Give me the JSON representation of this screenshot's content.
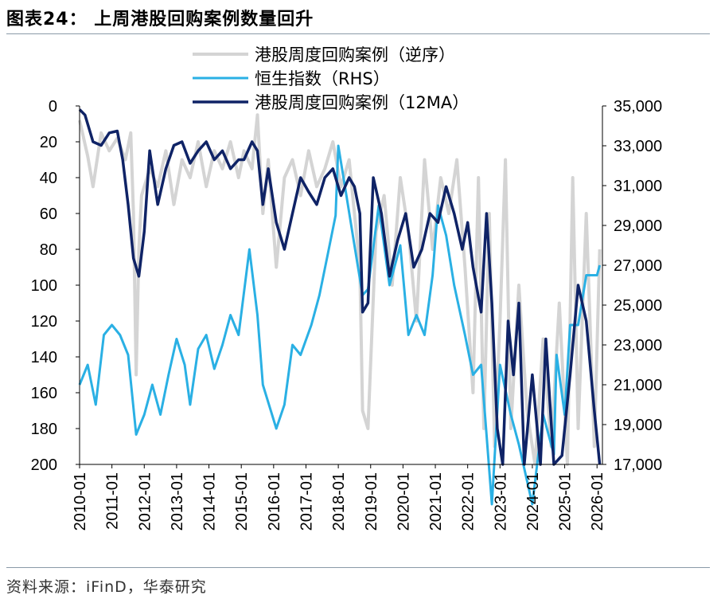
{
  "header": {
    "title": "图表24：  上周港股回购案例数量回升"
  },
  "footer": {
    "source": "资料来源：iFinD，华泰研究"
  },
  "chart_data": {
    "type": "line",
    "x_tick_labels": [
      "2010-01",
      "2011-01",
      "2012-01",
      "2013-01",
      "2014-01",
      "2015-01",
      "2016-01",
      "2017-01",
      "2018-01",
      "2019-01",
      "2020-01",
      "2021-01",
      "2022-01",
      "2023-01",
      "2024-01",
      "2025-01",
      "2026-01"
    ],
    "x_range": [
      "2010-01",
      "2026-03"
    ],
    "left_axis": {
      "inverted": true,
      "ylim": [
        0,
        200
      ],
      "tick_labels": [
        "0",
        "20",
        "40",
        "60",
        "80",
        "100",
        "120",
        "140",
        "160",
        "180",
        "200"
      ]
    },
    "right_axis": {
      "ylim": [
        17000,
        35000
      ],
      "tick_labels": [
        "35,000",
        "33,000",
        "31,000",
        "29,000",
        "27,000",
        "25,000",
        "23,000",
        "21,000",
        "19,000",
        "17,000"
      ]
    },
    "legend_position": "top",
    "series": [
      {
        "name": "港股周度回购案例（逆序）",
        "axis": "left",
        "color": "#d4d4d4",
        "points": [
          [
            "2010-01",
            8
          ],
          [
            "2010-04",
            28
          ],
          [
            "2010-06",
            45
          ],
          [
            "2010-09",
            15
          ],
          [
            "2010-12",
            25
          ],
          [
            "2011-03",
            18
          ],
          [
            "2011-06",
            30
          ],
          [
            "2011-08",
            15
          ],
          [
            "2011-09",
            60
          ],
          [
            "2011-10",
            150
          ],
          [
            "2011-11",
            80
          ],
          [
            "2011-12",
            50
          ],
          [
            "2012-03",
            35
          ],
          [
            "2012-06",
            45
          ],
          [
            "2012-09",
            25
          ],
          [
            "2012-12",
            55
          ],
          [
            "2013-03",
            30
          ],
          [
            "2013-06",
            40
          ],
          [
            "2013-09",
            20
          ],
          [
            "2013-12",
            45
          ],
          [
            "2014-03",
            25
          ],
          [
            "2014-06",
            35
          ],
          [
            "2014-09",
            20
          ],
          [
            "2014-12",
            40
          ],
          [
            "2015-02",
            25
          ],
          [
            "2015-05",
            35
          ],
          [
            "2015-07",
            5
          ],
          [
            "2015-09",
            60
          ],
          [
            "2015-11",
            30
          ],
          [
            "2016-02",
            90
          ],
          [
            "2016-05",
            40
          ],
          [
            "2016-08",
            30
          ],
          [
            "2016-11",
            50
          ],
          [
            "2017-02",
            25
          ],
          [
            "2017-05",
            45
          ],
          [
            "2017-08",
            35
          ],
          [
            "2017-11",
            20
          ],
          [
            "2018-02",
            45
          ],
          [
            "2018-05",
            30
          ],
          [
            "2018-07",
            60
          ],
          [
            "2018-09",
            90
          ],
          [
            "2018-10",
            170
          ],
          [
            "2018-12",
            180
          ],
          [
            "2019-03",
            70
          ],
          [
            "2019-06",
            50
          ],
          [
            "2019-09",
            100
          ],
          [
            "2019-12",
            40
          ],
          [
            "2020-03",
            70
          ],
          [
            "2020-06",
            120
          ],
          [
            "2020-09",
            30
          ],
          [
            "2020-12",
            80
          ],
          [
            "2021-03",
            40
          ],
          [
            "2021-06",
            60
          ],
          [
            "2021-09",
            30
          ],
          [
            "2021-12",
            90
          ],
          [
            "2022-03",
            160
          ],
          [
            "2022-05",
            40
          ],
          [
            "2022-07",
            180
          ],
          [
            "2022-09",
            60
          ],
          [
            "2022-11",
            190
          ],
          [
            "2023-01",
            120
          ],
          [
            "2023-03",
            30
          ],
          [
            "2023-05",
            180
          ],
          [
            "2023-08",
            100
          ],
          [
            "2023-11",
            170
          ],
          [
            "2024-02",
            200
          ],
          [
            "2024-05",
            130
          ],
          [
            "2024-08",
            190
          ],
          [
            "2024-11",
            110
          ],
          [
            "2025-02",
            200
          ],
          [
            "2025-04",
            40
          ],
          [
            "2025-06",
            180
          ],
          [
            "2025-09",
            60
          ],
          [
            "2025-12",
            190
          ],
          [
            "2026-02",
            80
          ]
        ]
      },
      {
        "name": "恒生指数（RHS）",
        "axis": "right",
        "color": "#2ab0e4",
        "points": [
          [
            "2010-01",
            21000
          ],
          [
            "2010-04",
            22000
          ],
          [
            "2010-07",
            20000
          ],
          [
            "2010-10",
            23500
          ],
          [
            "2011-01",
            24000
          ],
          [
            "2011-04",
            23500
          ],
          [
            "2011-07",
            22500
          ],
          [
            "2011-10",
            18500
          ],
          [
            "2012-01",
            19500
          ],
          [
            "2012-04",
            21000
          ],
          [
            "2012-07",
            19500
          ],
          [
            "2012-10",
            21500
          ],
          [
            "2013-01",
            23300
          ],
          [
            "2013-04",
            22000
          ],
          [
            "2013-06",
            20000
          ],
          [
            "2013-09",
            22800
          ],
          [
            "2013-12",
            23500
          ],
          [
            "2014-03",
            21800
          ],
          [
            "2014-06",
            23000
          ],
          [
            "2014-09",
            24500
          ],
          [
            "2014-12",
            23500
          ],
          [
            "2015-04",
            27800
          ],
          [
            "2015-07",
            24500
          ],
          [
            "2015-09",
            21000
          ],
          [
            "2016-02",
            18800
          ],
          [
            "2016-05",
            20000
          ],
          [
            "2016-08",
            23000
          ],
          [
            "2016-11",
            22500
          ],
          [
            "2017-03",
            24000
          ],
          [
            "2017-06",
            25500
          ],
          [
            "2017-09",
            27500
          ],
          [
            "2017-12",
            29500
          ],
          [
            "2018-01",
            33000
          ],
          [
            "2018-04",
            30500
          ],
          [
            "2018-07",
            28000
          ],
          [
            "2018-10",
            25500
          ],
          [
            "2018-12",
            25800
          ],
          [
            "2019-04",
            30000
          ],
          [
            "2019-08",
            26000
          ],
          [
            "2019-12",
            28000
          ],
          [
            "2020-03",
            23500
          ],
          [
            "2020-06",
            24500
          ],
          [
            "2020-09",
            23500
          ],
          [
            "2020-12",
            26500
          ],
          [
            "2021-02",
            30000
          ],
          [
            "2021-05",
            28500
          ],
          [
            "2021-08",
            26000
          ],
          [
            "2021-12",
            23500
          ],
          [
            "2022-03",
            21500
          ],
          [
            "2022-06",
            22000
          ],
          [
            "2022-10",
            15000
          ],
          [
            "2023-01",
            22000
          ],
          [
            "2023-05",
            19500
          ],
          [
            "2023-08",
            18000
          ],
          [
            "2024-01",
            15000
          ],
          [
            "2024-05",
            19500
          ],
          [
            "2024-09",
            17500
          ],
          [
            "2024-10",
            22500
          ],
          [
            "2025-01",
            19500
          ],
          [
            "2025-03",
            24000
          ],
          [
            "2025-06",
            24000
          ],
          [
            "2025-09",
            26500
          ],
          [
            "2026-01",
            26500
          ],
          [
            "2026-02",
            27000
          ]
        ]
      },
      {
        "name": "港股周度回购案例（12MA）",
        "axis": "left",
        "color": "#0f2366",
        "points": [
          [
            "2010-01",
            2
          ],
          [
            "2010-03",
            5
          ],
          [
            "2010-06",
            20
          ],
          [
            "2010-09",
            22
          ],
          [
            "2010-12",
            15
          ],
          [
            "2011-03",
            14
          ],
          [
            "2011-05",
            30
          ],
          [
            "2011-07",
            55
          ],
          [
            "2011-09",
            85
          ],
          [
            "2011-11",
            95
          ],
          [
            "2012-01",
            70
          ],
          [
            "2012-03",
            25
          ],
          [
            "2012-06",
            55
          ],
          [
            "2012-09",
            35
          ],
          [
            "2012-12",
            22
          ],
          [
            "2013-03",
            20
          ],
          [
            "2013-06",
            32
          ],
          [
            "2013-09",
            25
          ],
          [
            "2013-12",
            20
          ],
          [
            "2014-03",
            30
          ],
          [
            "2014-06",
            25
          ],
          [
            "2014-09",
            35
          ],
          [
            "2014-12",
            30
          ],
          [
            "2015-02",
            30
          ],
          [
            "2015-05",
            20
          ],
          [
            "2015-07",
            25
          ],
          [
            "2015-09",
            55
          ],
          [
            "2015-11",
            35
          ],
          [
            "2016-02",
            65
          ],
          [
            "2016-05",
            80
          ],
          [
            "2016-08",
            60
          ],
          [
            "2016-11",
            40
          ],
          [
            "2017-02",
            48
          ],
          [
            "2017-05",
            55
          ],
          [
            "2017-08",
            40
          ],
          [
            "2017-11",
            35
          ],
          [
            "2018-02",
            50
          ],
          [
            "2018-05",
            40
          ],
          [
            "2018-07",
            45
          ],
          [
            "2018-09",
            60
          ],
          [
            "2018-10",
            115
          ],
          [
            "2018-12",
            110
          ],
          [
            "2019-02",
            40
          ],
          [
            "2019-05",
            60
          ],
          [
            "2019-08",
            95
          ],
          [
            "2019-11",
            75
          ],
          [
            "2020-02",
            60
          ],
          [
            "2020-05",
            90
          ],
          [
            "2020-08",
            80
          ],
          [
            "2020-11",
            60
          ],
          [
            "2021-02",
            65
          ],
          [
            "2021-05",
            45
          ],
          [
            "2021-08",
            60
          ],
          [
            "2021-11",
            80
          ],
          [
            "2022-01",
            65
          ],
          [
            "2022-03",
            90
          ],
          [
            "2022-06",
            115
          ],
          [
            "2022-08",
            60
          ],
          [
            "2022-10",
            110
          ],
          [
            "2022-12",
            180
          ],
          [
            "2023-02",
            200
          ],
          [
            "2023-04",
            120
          ],
          [
            "2023-06",
            150
          ],
          [
            "2023-08",
            110
          ],
          [
            "2023-10",
            200
          ],
          [
            "2024-01",
            150
          ],
          [
            "2024-04",
            200
          ],
          [
            "2024-06",
            130
          ],
          [
            "2024-09",
            200
          ],
          [
            "2024-12",
            195
          ],
          [
            "2025-03",
            150
          ],
          [
            "2025-06",
            100
          ],
          [
            "2025-09",
            120
          ],
          [
            "2025-12",
            170
          ],
          [
            "2026-02",
            200
          ]
        ]
      }
    ]
  }
}
